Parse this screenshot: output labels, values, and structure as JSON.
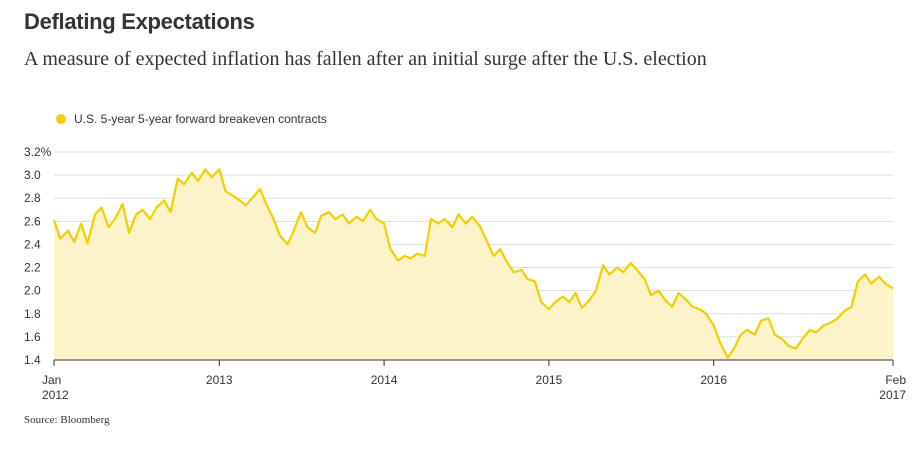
{
  "title": "Deflating Expectations",
  "subtitle": "A measure of expected inflation has fallen after an initial surge after the U.S. election",
  "source": "Source: Bloomberg",
  "chart_data": {
    "type": "area",
    "series": [
      {
        "name": "U.S. 5-year 5-year forward breakeven contracts",
        "color": "#f2cf00",
        "fill": "#fdf3c8",
        "points": [
          [
            "2012-01-01",
            2.61
          ],
          [
            "2012-01-15",
            2.45
          ],
          [
            "2012-02-01",
            2.52
          ],
          [
            "2012-02-15",
            2.42
          ],
          [
            "2012-03-01",
            2.58
          ],
          [
            "2012-03-15",
            2.41
          ],
          [
            "2012-04-01",
            2.66
          ],
          [
            "2012-04-15",
            2.72
          ],
          [
            "2012-05-01",
            2.55
          ],
          [
            "2012-05-15",
            2.62
          ],
          [
            "2012-06-01",
            2.75
          ],
          [
            "2012-06-15",
            2.5
          ],
          [
            "2012-07-01",
            2.66
          ],
          [
            "2012-07-15",
            2.7
          ],
          [
            "2012-08-01",
            2.62
          ],
          [
            "2012-08-15",
            2.72
          ],
          [
            "2012-09-01",
            2.78
          ],
          [
            "2012-09-15",
            2.68
          ],
          [
            "2012-10-01",
            2.97
          ],
          [
            "2012-10-15",
            2.92
          ],
          [
            "2012-11-01",
            3.02
          ],
          [
            "2012-11-15",
            2.95
          ],
          [
            "2012-12-01",
            3.05
          ],
          [
            "2012-12-15",
            2.98
          ],
          [
            "2013-01-01",
            3.05
          ],
          [
            "2013-01-15",
            2.86
          ],
          [
            "2013-02-01",
            2.82
          ],
          [
            "2013-02-15",
            2.78
          ],
          [
            "2013-03-01",
            2.74
          ],
          [
            "2013-03-15",
            2.8
          ],
          [
            "2013-04-01",
            2.88
          ],
          [
            "2013-04-15",
            2.75
          ],
          [
            "2013-05-01",
            2.62
          ],
          [
            "2013-05-15",
            2.48
          ],
          [
            "2013-06-01",
            2.4
          ],
          [
            "2013-06-15",
            2.52
          ],
          [
            "2013-07-01",
            2.68
          ],
          [
            "2013-07-15",
            2.55
          ],
          [
            "2013-08-01",
            2.5
          ],
          [
            "2013-08-15",
            2.65
          ],
          [
            "2013-09-01",
            2.68
          ],
          [
            "2013-09-15",
            2.62
          ],
          [
            "2013-10-01",
            2.66
          ],
          [
            "2013-10-15",
            2.58
          ],
          [
            "2013-11-01",
            2.64
          ],
          [
            "2013-11-15",
            2.6
          ],
          [
            "2013-12-01",
            2.7
          ],
          [
            "2013-12-15",
            2.62
          ],
          [
            "2014-01-01",
            2.58
          ],
          [
            "2014-01-15",
            2.36
          ],
          [
            "2014-02-01",
            2.26
          ],
          [
            "2014-02-15",
            2.3
          ],
          [
            "2014-03-01",
            2.28
          ],
          [
            "2014-03-15",
            2.32
          ],
          [
            "2014-04-01",
            2.3
          ],
          [
            "2014-04-15",
            2.62
          ],
          [
            "2014-05-01",
            2.58
          ],
          [
            "2014-05-15",
            2.62
          ],
          [
            "2014-06-01",
            2.55
          ],
          [
            "2014-06-15",
            2.66
          ],
          [
            "2014-07-01",
            2.58
          ],
          [
            "2014-07-15",
            2.64
          ],
          [
            "2014-08-01",
            2.56
          ],
          [
            "2014-08-15",
            2.44
          ],
          [
            "2014-09-01",
            2.3
          ],
          [
            "2014-09-15",
            2.36
          ],
          [
            "2014-10-01",
            2.24
          ],
          [
            "2014-10-15",
            2.16
          ],
          [
            "2014-11-01",
            2.18
          ],
          [
            "2014-11-15",
            2.1
          ],
          [
            "2014-12-01",
            2.08
          ],
          [
            "2014-12-15",
            1.9
          ],
          [
            "2015-01-01",
            1.84
          ],
          [
            "2015-01-15",
            1.9
          ],
          [
            "2015-02-01",
            1.95
          ],
          [
            "2015-02-15",
            1.9
          ],
          [
            "2015-03-01",
            1.98
          ],
          [
            "2015-03-15",
            1.85
          ],
          [
            "2015-04-01",
            1.92
          ],
          [
            "2015-04-15",
            2.0
          ],
          [
            "2015-05-01",
            2.22
          ],
          [
            "2015-05-15",
            2.14
          ],
          [
            "2015-06-01",
            2.2
          ],
          [
            "2015-06-15",
            2.16
          ],
          [
            "2015-07-01",
            2.24
          ],
          [
            "2015-07-15",
            2.18
          ],
          [
            "2015-08-01",
            2.1
          ],
          [
            "2015-08-15",
            1.96
          ],
          [
            "2015-09-01",
            2.0
          ],
          [
            "2015-09-15",
            1.92
          ],
          [
            "2015-10-01",
            1.86
          ],
          [
            "2015-10-15",
            1.98
          ],
          [
            "2015-11-01",
            1.92
          ],
          [
            "2015-11-15",
            1.86
          ],
          [
            "2015-12-01",
            1.84
          ],
          [
            "2015-12-15",
            1.8
          ],
          [
            "2016-01-01",
            1.7
          ],
          [
            "2016-01-15",
            1.55
          ],
          [
            "2016-02-01",
            1.42
          ],
          [
            "2016-02-15",
            1.5
          ],
          [
            "2016-03-01",
            1.62
          ],
          [
            "2016-03-15",
            1.66
          ],
          [
            "2016-04-01",
            1.62
          ],
          [
            "2016-04-15",
            1.74
          ],
          [
            "2016-05-01",
            1.76
          ],
          [
            "2016-05-15",
            1.62
          ],
          [
            "2016-06-01",
            1.58
          ],
          [
            "2016-06-15",
            1.52
          ],
          [
            "2016-07-01",
            1.5
          ],
          [
            "2016-07-15",
            1.58
          ],
          [
            "2016-08-01",
            1.66
          ],
          [
            "2016-08-15",
            1.64
          ],
          [
            "2016-09-01",
            1.7
          ],
          [
            "2016-09-15",
            1.72
          ],
          [
            "2016-10-01",
            1.76
          ],
          [
            "2016-10-15",
            1.82
          ],
          [
            "2016-11-01",
            1.86
          ],
          [
            "2016-11-15",
            2.08
          ],
          [
            "2016-12-01",
            2.14
          ],
          [
            "2016-12-15",
            2.06
          ],
          [
            "2017-01-01",
            2.12
          ],
          [
            "2017-01-15",
            2.06
          ],
          [
            "2017-02-01",
            2.02
          ]
        ]
      }
    ],
    "xlabels": [
      {
        "date": "2012-01-01",
        "lines": [
          "Jan",
          "2012"
        ]
      },
      {
        "date": "2013-01-01",
        "lines": [
          "2013"
        ]
      },
      {
        "date": "2014-01-01",
        "lines": [
          "2014"
        ]
      },
      {
        "date": "2015-01-01",
        "lines": [
          "2015"
        ]
      },
      {
        "date": "2016-01-01",
        "lines": [
          "2016"
        ]
      },
      {
        "date": "2017-02-01",
        "lines": [
          "Feb",
          "2017"
        ]
      }
    ],
    "xlim": [
      "2012-01-01",
      "2017-02-01"
    ],
    "yticks": [
      1.4,
      1.6,
      1.8,
      2.0,
      2.2,
      2.4,
      2.6,
      2.8,
      3.0,
      3.2
    ],
    "ytick_labels": [
      "1.4",
      "1.6",
      "1.8",
      "2.0",
      "2.2",
      "2.4",
      "2.6",
      "2.8",
      "3.0",
      "3.2%"
    ],
    "ylim": [
      1.4,
      3.2
    ],
    "grid": true,
    "legend_position": "top-left"
  }
}
